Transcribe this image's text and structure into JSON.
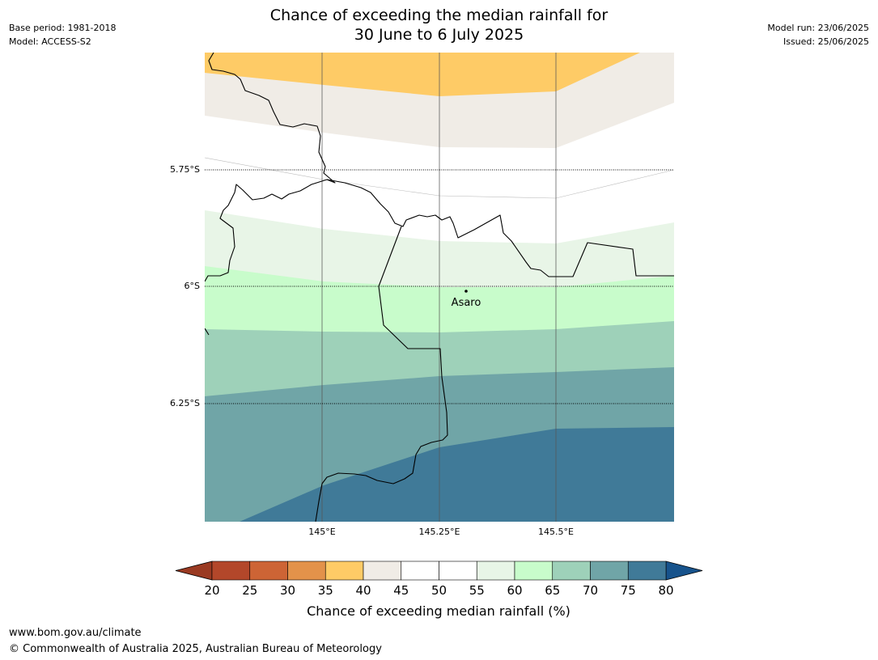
{
  "header": {
    "title_line1": "Chance of exceeding the median rainfall for",
    "title_line2": "30 June to 6 July 2025",
    "base_period": "Base period: 1981-2018",
    "model": "Model: ACCESS-S2",
    "model_run": "Model run: 23/06/2025",
    "issued": "Issued: 25/06/2025"
  },
  "map": {
    "lat_labels": [
      "5.75°S",
      "6°S",
      "6.25°S"
    ],
    "lon_labels": [
      "145°E",
      "145.25°E",
      "145.5°E"
    ],
    "place": {
      "name": "Asaro"
    },
    "colors": {
      "band_35_40": "#fecb66",
      "band_40_45": "#f0ece6",
      "band_45_55": "#ffffff",
      "band_55_60": "#e8f5e7",
      "band_60_65": "#c8fccb",
      "band_65_70": "#9ed1b9",
      "band_70_75": "#70a5a7",
      "band_75_80": "#407a98"
    }
  },
  "colorbar": {
    "ticks": [
      "20",
      "25",
      "30",
      "35",
      "40",
      "45",
      "50",
      "55",
      "60",
      "65",
      "70",
      "75",
      "80"
    ],
    "colors": [
      "#b3472a",
      "#cd6435",
      "#e3924a",
      "#fecb66",
      "#f0ece6",
      "#ffffff",
      "#ffffff",
      "#e8f5e7",
      "#c8fccb",
      "#9ed1b9",
      "#70a5a7",
      "#407a98"
    ],
    "under_color": "#9a3a22",
    "over_color": "#17538c",
    "label": "Chance of exceeding median rainfall (%)"
  },
  "footer": {
    "url": "www.bom.gov.au/climate",
    "copyright": "© Commonwealth of Australia 2025, Australian Bureau of Meteorology"
  }
}
